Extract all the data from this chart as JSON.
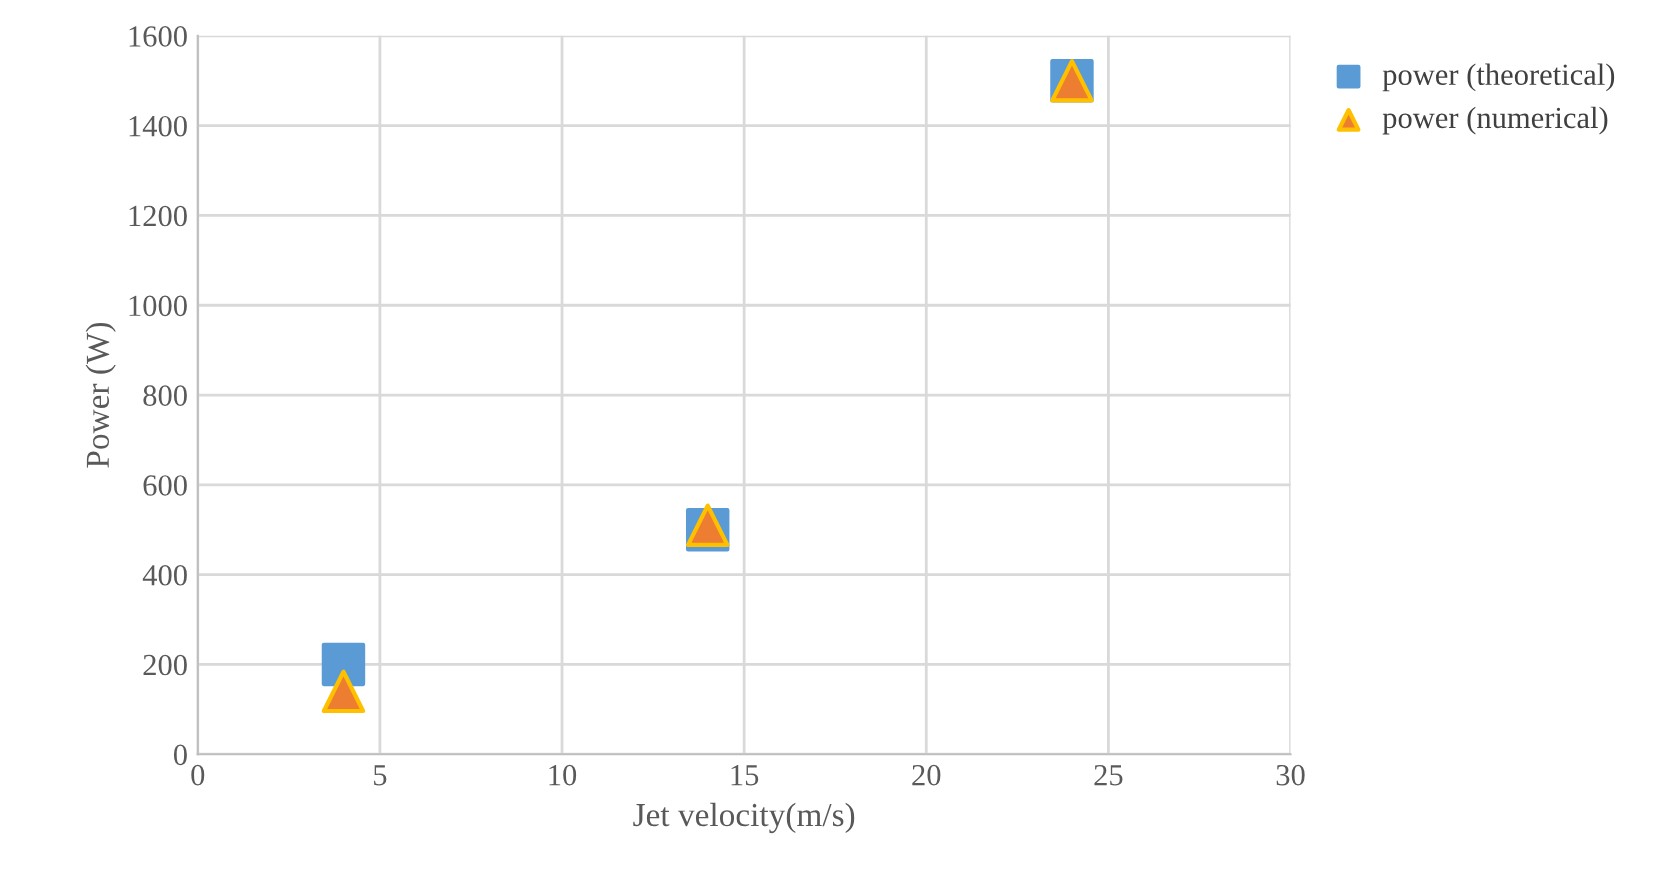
{
  "chart_data": {
    "type": "scatter",
    "xlabel": "Jet velocity(m/s)",
    "ylabel": "Power (W)",
    "xlim": [
      0,
      30
    ],
    "xticks": [
      0,
      5,
      10,
      15,
      20,
      25,
      30
    ],
    "ylim": [
      0,
      1600
    ],
    "yticks": [
      0,
      200,
      400,
      600,
      800,
      1000,
      1200,
      1400,
      1600
    ],
    "grid": true,
    "legend": "top right",
    "series": [
      {
        "name": "power (theoretical)",
        "color": "#5b9bd5",
        "marker": "square",
        "x": [
          4,
          14,
          24
        ],
        "values": [
          200,
          500,
          1500
        ]
      },
      {
        "name": "power (numerical)",
        "color": "#ed7d31",
        "marker": "triangle",
        "x": [
          4,
          14,
          24
        ],
        "values": [
          140,
          510,
          1500
        ]
      }
    ]
  }
}
